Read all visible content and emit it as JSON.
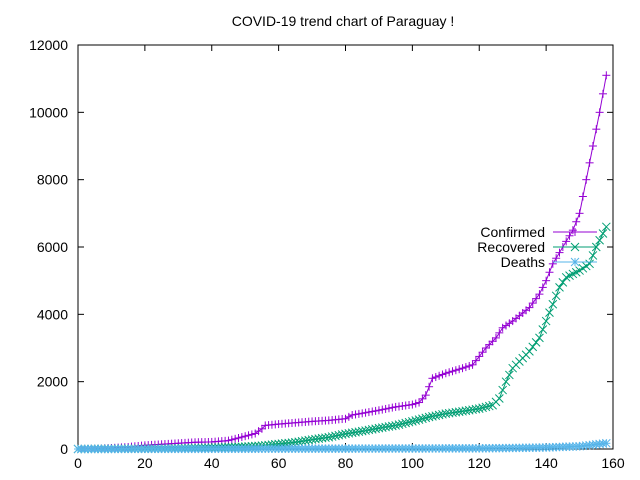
{
  "chart_data": {
    "type": "line",
    "title": "COVID-19 trend chart of Paraguay !",
    "xlabel": "",
    "ylabel": "",
    "xlim": [
      0,
      160
    ],
    "ylim": [
      0,
      12000
    ],
    "xticks": [
      0,
      20,
      40,
      60,
      80,
      100,
      120,
      140,
      160
    ],
    "yticks": [
      0,
      2000,
      4000,
      6000,
      8000,
      10000,
      12000
    ],
    "grid": false,
    "legend_position": "right",
    "series": [
      {
        "name": "Confirmed",
        "color": "#9400d3",
        "marker": "plus",
        "points": [
          [
            0,
            0
          ],
          [
            5,
            5
          ],
          [
            10,
            30
          ],
          [
            15,
            60
          ],
          [
            20,
            110
          ],
          [
            25,
            140
          ],
          [
            30,
            170
          ],
          [
            35,
            200
          ],
          [
            40,
            210
          ],
          [
            45,
            250
          ],
          [
            50,
            380
          ],
          [
            53,
            460
          ],
          [
            55,
            600
          ],
          [
            56,
            700
          ],
          [
            60,
            740
          ],
          [
            65,
            780
          ],
          [
            70,
            820
          ],
          [
            75,
            850
          ],
          [
            80,
            900
          ],
          [
            82,
            1010
          ],
          [
            85,
            1060
          ],
          [
            90,
            1150
          ],
          [
            95,
            1250
          ],
          [
            100,
            1320
          ],
          [
            102,
            1380
          ],
          [
            104,
            1600
          ],
          [
            106,
            2100
          ],
          [
            110,
            2250
          ],
          [
            115,
            2400
          ],
          [
            118,
            2500
          ],
          [
            120,
            2750
          ],
          [
            122,
            3000
          ],
          [
            125,
            3300
          ],
          [
            127,
            3600
          ],
          [
            130,
            3800
          ],
          [
            135,
            4200
          ],
          [
            138,
            4600
          ],
          [
            140,
            5000
          ],
          [
            142,
            5500
          ],
          [
            145,
            6000
          ],
          [
            148,
            6500
          ],
          [
            150,
            7000
          ],
          [
            152,
            8000
          ],
          [
            154,
            9000
          ],
          [
            156,
            10000
          ],
          [
            158,
            11100
          ]
        ]
      },
      {
        "name": "Recovered",
        "color": "#009e73",
        "marker": "cross",
        "points": [
          [
            0,
            0
          ],
          [
            10,
            5
          ],
          [
            20,
            10
          ],
          [
            30,
            20
          ],
          [
            40,
            40
          ],
          [
            50,
            70
          ],
          [
            55,
            100
          ],
          [
            60,
            150
          ],
          [
            65,
            200
          ],
          [
            70,
            280
          ],
          [
            75,
            350
          ],
          [
            80,
            450
          ],
          [
            85,
            530
          ],
          [
            90,
            620
          ],
          [
            95,
            700
          ],
          [
            100,
            820
          ],
          [
            105,
            950
          ],
          [
            110,
            1050
          ],
          [
            115,
            1120
          ],
          [
            120,
            1200
          ],
          [
            124,
            1300
          ],
          [
            126,
            1500
          ],
          [
            128,
            2000
          ],
          [
            130,
            2400
          ],
          [
            135,
            2900
          ],
          [
            138,
            3300
          ],
          [
            140,
            3800
          ],
          [
            142,
            4300
          ],
          [
            144,
            4800
          ],
          [
            146,
            5100
          ],
          [
            150,
            5300
          ],
          [
            153,
            5500
          ],
          [
            155,
            6000
          ],
          [
            158,
            6600
          ]
        ]
      },
      {
        "name": "Deaths",
        "color": "#56b4e9",
        "marker": "star",
        "points": [
          [
            0,
            0
          ],
          [
            20,
            2
          ],
          [
            40,
            5
          ],
          [
            60,
            10
          ],
          [
            80,
            12
          ],
          [
            100,
            15
          ],
          [
            120,
            20
          ],
          [
            130,
            30
          ],
          [
            140,
            45
          ],
          [
            150,
            80
          ],
          [
            158,
            170
          ]
        ]
      }
    ]
  }
}
